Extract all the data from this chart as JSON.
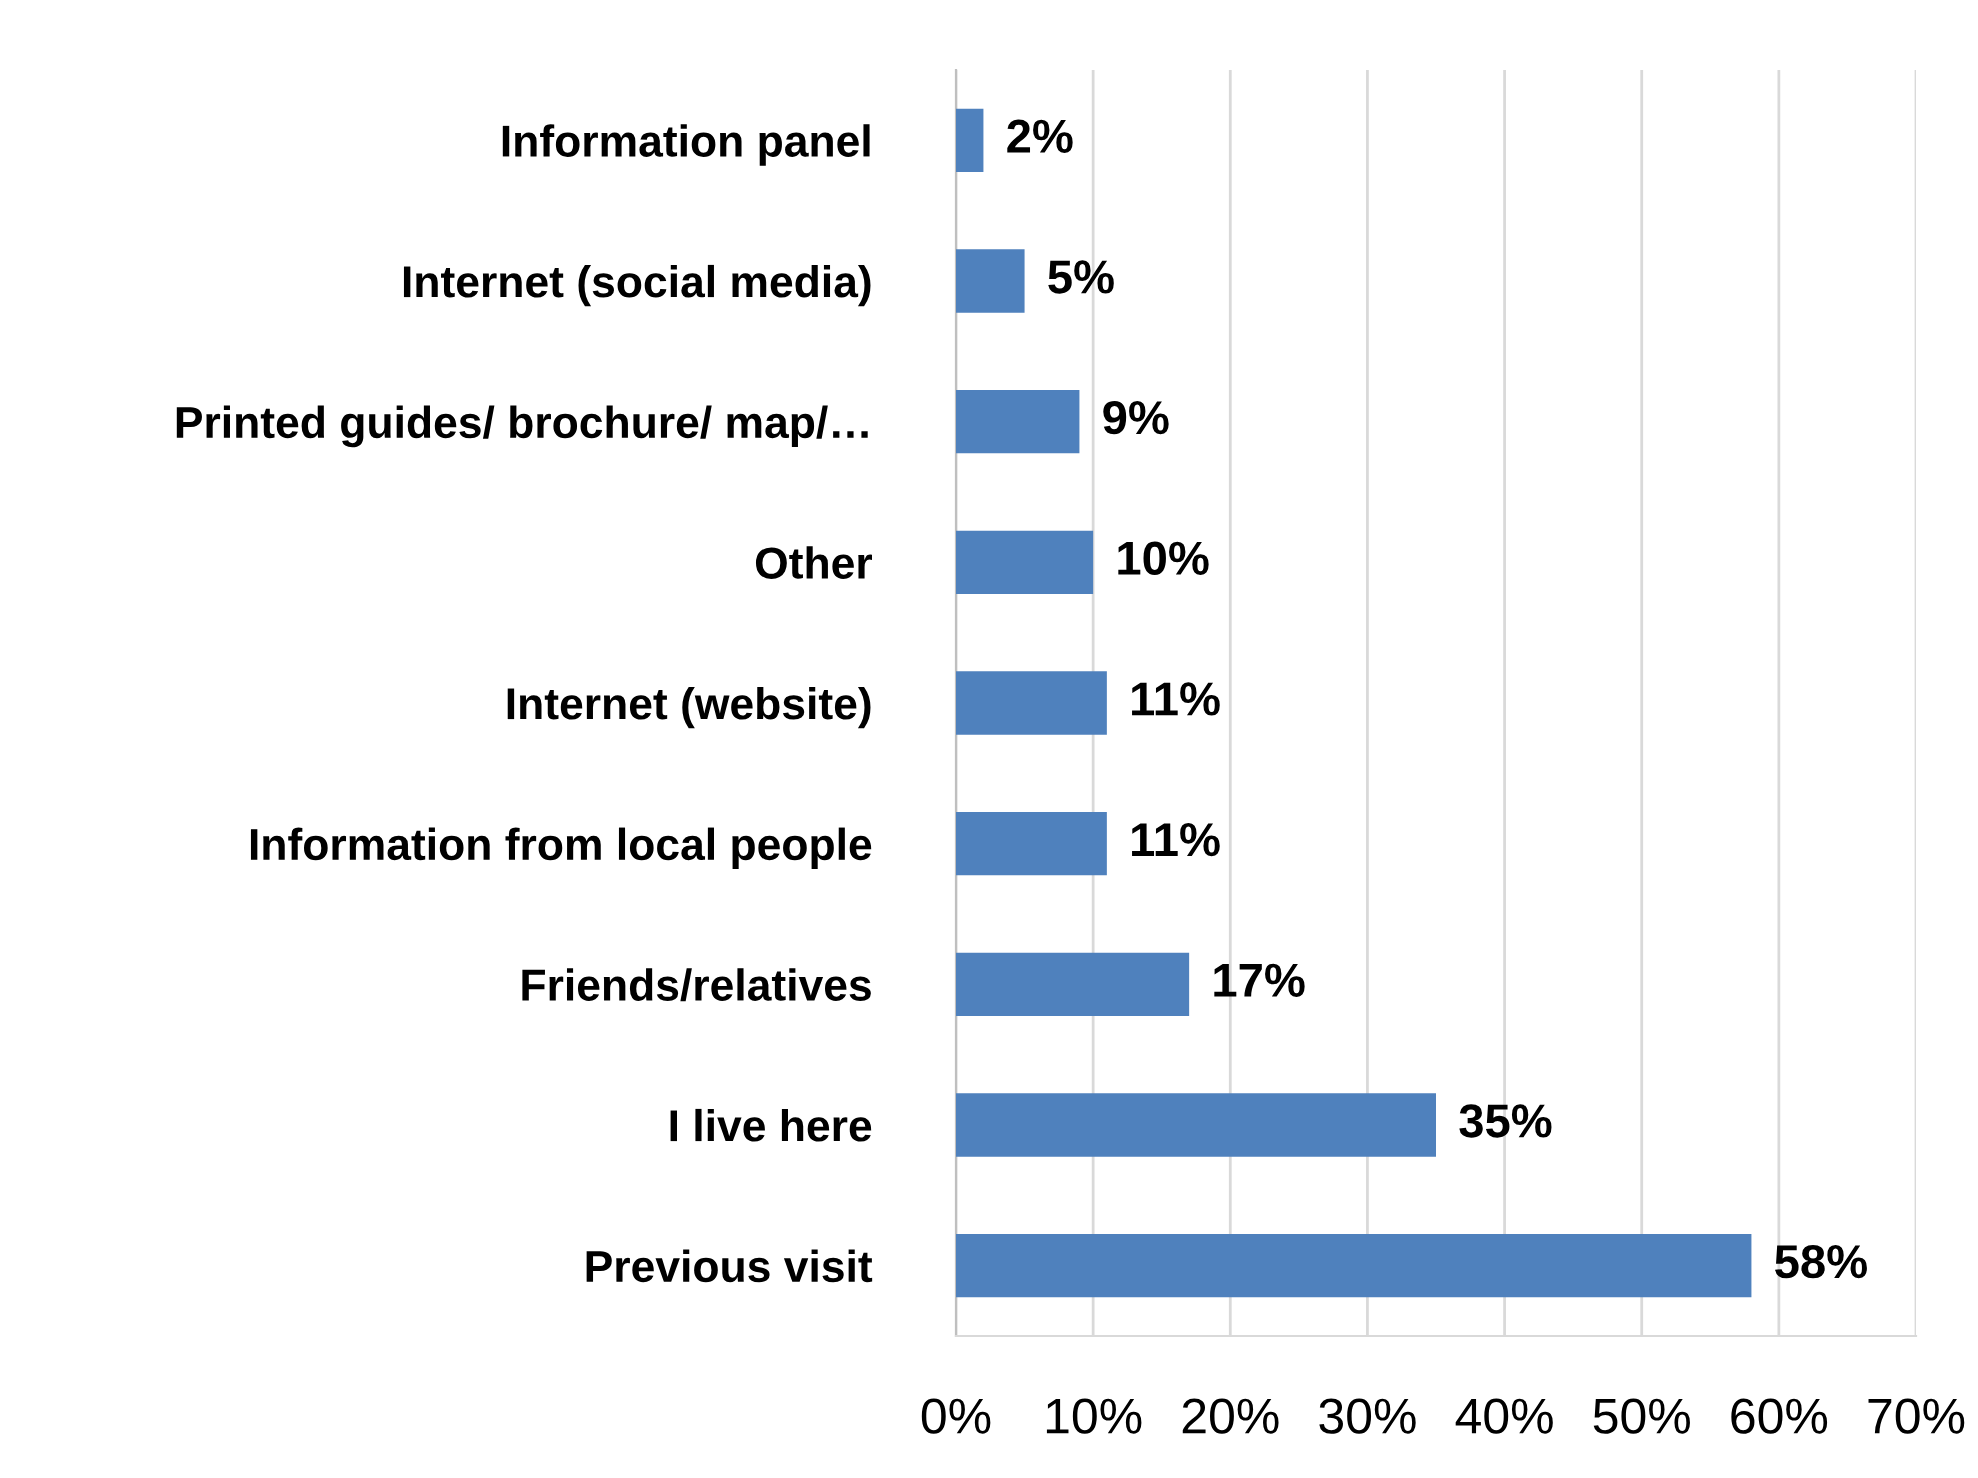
{
  "chart_data": {
    "type": "bar",
    "orientation": "horizontal",
    "categories": [
      "Information panel",
      "Internet (social media)",
      "Printed guides/ brochure/ map/…",
      "Other",
      "Internet (website)",
      "Information from local people",
      "Friends/relatives",
      "I live here",
      "Previous visit"
    ],
    "values": [
      2,
      5,
      9,
      10,
      11,
      11,
      17,
      35,
      58
    ],
    "value_labels": [
      "2%",
      "5%",
      "9%",
      "10%",
      "11%",
      "11%",
      "17%",
      "35%",
      "58%"
    ],
    "color": "#4f81bd",
    "xlim": [
      0,
      70
    ],
    "xticks": [
      {
        "value": 0,
        "label": "0%"
      },
      {
        "value": 10,
        "label": "10%"
      },
      {
        "value": 20,
        "label": "20%"
      },
      {
        "value": 30,
        "label": "30%"
      },
      {
        "value": 40,
        "label": "40%"
      },
      {
        "value": 50,
        "label": "50%"
      },
      {
        "value": 60,
        "label": "60%"
      },
      {
        "value": 70,
        "label": "70%"
      }
    ],
    "grid": "x",
    "legend": false
  }
}
